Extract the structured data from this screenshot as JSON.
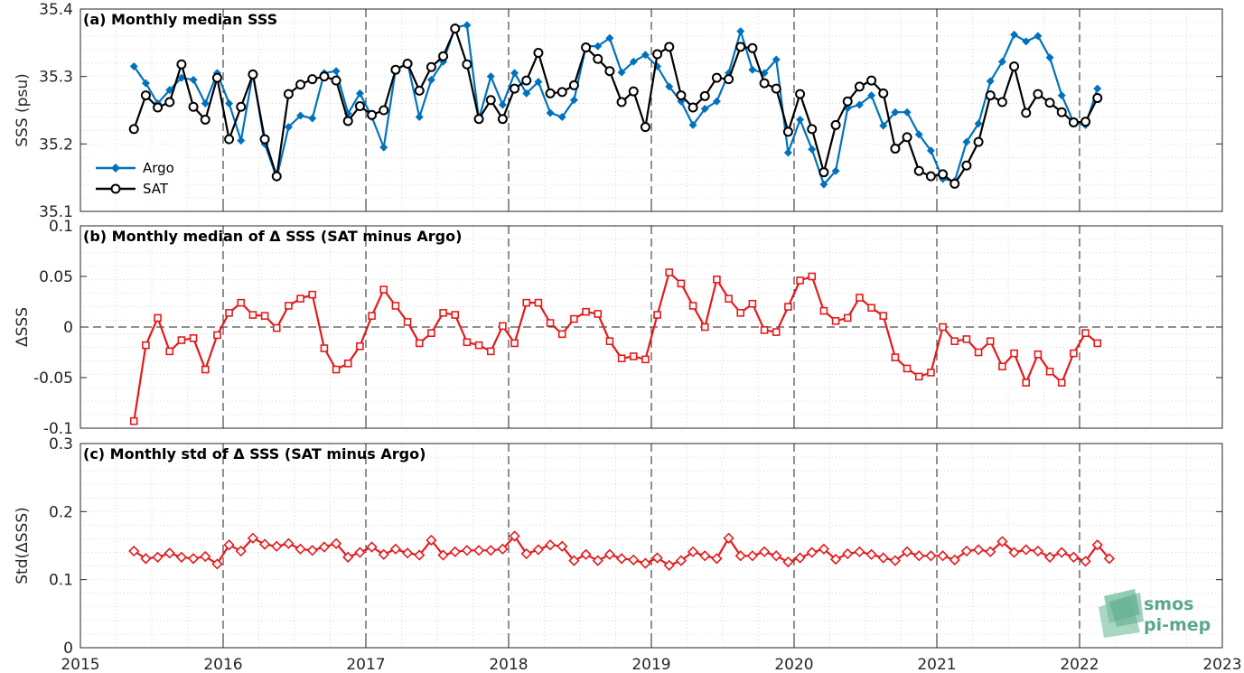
{
  "chart_data": [
    {
      "type": "line",
      "title": "(a) Monthly median SSS",
      "ylabel": "SSS (psu)",
      "ylim": [
        35.1,
        35.4
      ],
      "yticks": [
        "35.1",
        "35.2",
        "35.3",
        "35.4"
      ],
      "xlim": [
        2015,
        2023
      ],
      "grid": true,
      "legend_position": "bottom-left",
      "x_start": "2015-05",
      "series": [
        {
          "name": "Argo",
          "color": "#0072BD",
          "marker": "diamond-filled",
          "values": [
            35.315,
            35.29,
            35.26,
            35.28,
            35.298,
            35.295,
            35.26,
            35.305,
            35.26,
            35.205,
            35.305,
            35.2,
            35.15,
            35.225,
            35.242,
            35.238,
            35.305,
            35.308,
            35.245,
            35.275,
            35.24,
            35.195,
            35.31,
            35.32,
            35.24,
            35.295,
            35.322,
            35.373,
            35.376,
            35.237,
            35.3,
            35.258,
            35.305,
            35.275,
            35.292,
            35.246,
            35.24,
            35.265,
            35.345,
            35.345,
            35.357,
            35.306,
            35.322,
            35.332,
            35.315,
            35.285,
            35.263,
            35.228,
            35.252,
            35.263,
            35.305,
            35.367,
            35.31,
            35.305,
            35.325,
            35.187,
            35.236,
            35.192,
            35.14,
            35.16,
            35.253,
            35.258,
            35.272,
            35.227,
            35.247,
            35.247,
            35.214,
            35.19,
            35.148,
            35.145,
            35.203,
            35.23,
            35.293,
            35.322,
            35.362,
            35.352,
            35.36,
            35.328,
            35.272,
            35.232,
            35.228,
            35.282
          ]
        },
        {
          "name": "SAT",
          "color": "#000000",
          "marker": "circle-open",
          "values": [
            35.222,
            35.272,
            35.254,
            35.262,
            35.318,
            35.255,
            35.236,
            35.298,
            35.207,
            35.255,
            35.303,
            35.207,
            35.152,
            35.274,
            35.288,
            35.296,
            35.3,
            35.294,
            35.234,
            35.256,
            35.243,
            35.25,
            35.31,
            35.319,
            35.279,
            35.314,
            35.33,
            35.371,
            35.318,
            35.237,
            35.265,
            35.237,
            35.282,
            35.294,
            35.335,
            35.275,
            35.277,
            35.287,
            35.343,
            35.326,
            35.308,
            35.262,
            35.278,
            35.225,
            35.333,
            35.344,
            35.272,
            35.254,
            35.271,
            35.298,
            35.296,
            35.344,
            35.342,
            35.29,
            35.282,
            35.218,
            35.274,
            35.222,
            35.158,
            35.228,
            35.263,
            35.285,
            35.294,
            35.275,
            35.193,
            35.21,
            35.16,
            35.152,
            35.155,
            35.141,
            35.168,
            35.203,
            35.272,
            35.262,
            35.315,
            35.246,
            35.274,
            35.261,
            35.247,
            35.232,
            35.233,
            35.268
          ]
        }
      ]
    },
    {
      "type": "line",
      "title": "(b) Monthly median of Δ SSS (SAT minus Argo)",
      "ylabel": "ΔSSS",
      "ylim": [
        -0.1,
        0.1
      ],
      "yticks": [
        "-0.1",
        "-0.05",
        "0",
        "0.05",
        "0.1"
      ],
      "xlim": [
        2015,
        2023
      ],
      "grid": true,
      "zero_line": true,
      "x_start": "2015-05",
      "series": [
        {
          "name": "",
          "color": "#E41A1C",
          "marker": "square-open",
          "values": [
            -0.093,
            -0.018,
            0.009,
            -0.024,
            -0.013,
            -0.011,
            -0.042,
            -0.008,
            0.014,
            0.024,
            0.012,
            0.011,
            -0.001,
            0.021,
            0.028,
            0.032,
            -0.021,
            -0.042,
            -0.036,
            -0.019,
            0.011,
            0.037,
            0.021,
            0.005,
            -0.016,
            -0.006,
            0.014,
            0.012,
            -0.015,
            -0.018,
            -0.024,
            0.001,
            -0.016,
            0.024,
            0.024,
            0.004,
            -0.007,
            0.008,
            0.015,
            0.013,
            -0.014,
            -0.031,
            -0.029,
            -0.032,
            0.012,
            0.054,
            0.043,
            0.021,
            0.0,
            0.047,
            0.028,
            0.014,
            0.023,
            -0.003,
            -0.005,
            0.02,
            0.046,
            0.05,
            0.016,
            0.006,
            0.009,
            0.029,
            0.019,
            0.011,
            -0.03,
            -0.041,
            -0.049,
            -0.045,
            0.0,
            -0.014,
            -0.012,
            -0.025,
            -0.014,
            -0.039,
            -0.026,
            -0.055,
            -0.027,
            -0.044,
            -0.055,
            -0.026,
            -0.006,
            -0.016
          ]
        }
      ]
    },
    {
      "type": "line",
      "title": "(c) Monthly std of Δ SSS (SAT minus Argo)",
      "ylabel": "Std(ΔSSS)",
      "ylim": [
        0,
        0.3
      ],
      "yticks": [
        "0",
        "0.1",
        "0.2",
        "0.3"
      ],
      "xlim": [
        2015,
        2023
      ],
      "xticks": [
        "2015",
        "2016",
        "2017",
        "2018",
        "2019",
        "2020",
        "2021",
        "2022",
        "2023"
      ],
      "grid": true,
      "x_start": "2015-05",
      "series": [
        {
          "name": "",
          "color": "#E41A1C",
          "marker": "diamond-open",
          "values": [
            0.142,
            0.131,
            0.133,
            0.139,
            0.133,
            0.131,
            0.134,
            0.123,
            0.151,
            0.142,
            0.161,
            0.152,
            0.149,
            0.153,
            0.145,
            0.143,
            0.148,
            0.153,
            0.133,
            0.14,
            0.148,
            0.137,
            0.145,
            0.139,
            0.136,
            0.158,
            0.136,
            0.141,
            0.143,
            0.143,
            0.143,
            0.145,
            0.164,
            0.138,
            0.144,
            0.151,
            0.149,
            0.128,
            0.137,
            0.128,
            0.137,
            0.131,
            0.129,
            0.124,
            0.132,
            0.121,
            0.128,
            0.141,
            0.135,
            0.131,
            0.161,
            0.135,
            0.135,
            0.141,
            0.135,
            0.126,
            0.132,
            0.14,
            0.145,
            0.13,
            0.138,
            0.141,
            0.137,
            0.132,
            0.128,
            0.141,
            0.135,
            0.135,
            0.135,
            0.129,
            0.142,
            0.144,
            0.141,
            0.156,
            0.14,
            0.144,
            0.142,
            0.133,
            0.14,
            0.133,
            0.127,
            0.151,
            0.131
          ]
        }
      ]
    }
  ],
  "legend": {
    "items": [
      {
        "label": "Argo",
        "color": "#0072BD"
      },
      {
        "label": "SAT",
        "color": "#000000"
      }
    ]
  },
  "watermark": {
    "line1": "smos",
    "line2": "pi-mep",
    "color": "#5aa88a"
  }
}
